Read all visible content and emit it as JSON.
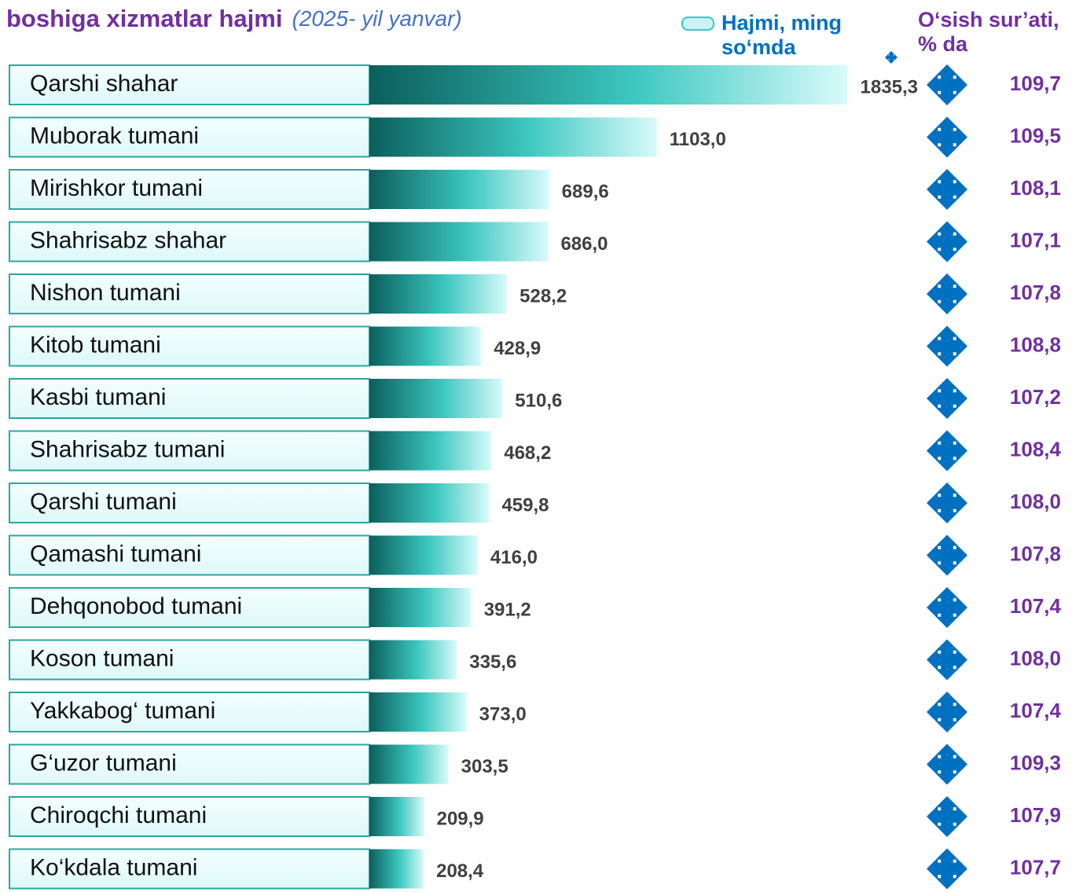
{
  "chart_data": {
    "type": "bar",
    "title": "boshiga xizmatlar hajmi",
    "subtitle": "(2025- yil yanvar)",
    "categories": [
      "Qarshi shahar",
      "Muborak tumani",
      "Mirishkor tumani",
      "Shahrisabz shahar",
      "Nishon tumani",
      "Kitob tumani",
      "Kasbi tumani",
      "Shahrisabz tumani",
      "Qarshi tumani",
      "Qamashi tumani",
      "Dehqonobod tumani",
      "Koson tumani",
      "Yakkabog‘ tumani",
      "G‘uzor tumani",
      "Chiroqchi tumani",
      "Ko‘kdala tumani"
    ],
    "series": [
      {
        "name": "Hajmi, ming so‘mda",
        "color": "#0e6f6a",
        "values": [
          1835.3,
          1103.0,
          689.6,
          686.0,
          528.2,
          428.9,
          510.6,
          468.2,
          459.8,
          416.0,
          391.2,
          335.6,
          373.0,
          303.5,
          209.9,
          208.4
        ],
        "value_labels": [
          "1835,3",
          "1103,0",
          "689,6",
          "686,0",
          "528,2",
          "428,9",
          "510,6",
          "468,2",
          "459,8",
          "416,0",
          "391,2",
          "335,6",
          "373,0",
          "303,5",
          "209,9",
          "208,4"
        ]
      },
      {
        "name": "O‘sish sur’ati, % da",
        "color": "#0070c0",
        "values": [
          109.7,
          109.5,
          108.1,
          107.1,
          107.8,
          108.8,
          107.2,
          108.4,
          108.0,
          107.8,
          107.4,
          108.0,
          107.4,
          109.3,
          107.9,
          107.7
        ],
        "value_labels": [
          "109,7",
          "109,5",
          "108,1",
          "107,1",
          "107,8",
          "108,8",
          "107,2",
          "108,4",
          "108,0",
          "107,8",
          "107,4",
          "108,0",
          "107,4",
          "109,3",
          "107,9",
          "107,7"
        ]
      }
    ],
    "xlim": [
      0,
      1900
    ]
  }
}
